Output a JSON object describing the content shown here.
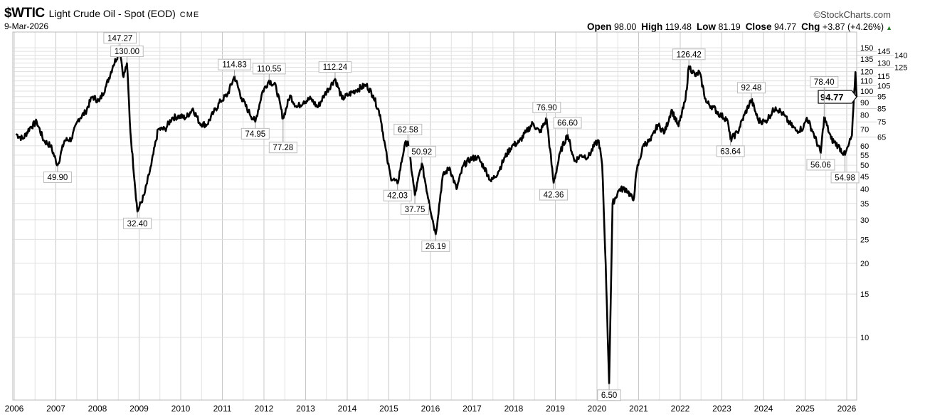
{
  "header": {
    "symbol": "$WTIC",
    "name": "Light Crude Oil - Spot (EOD)",
    "exchange": "CME",
    "date": "9-Mar-2026",
    "brand": "©StockCharts.com",
    "open_label": "Open",
    "open": "98.00",
    "high_label": "High",
    "high": "119.48",
    "low_label": "Low",
    "low": "81.19",
    "close_label": "Close",
    "close": "94.77",
    "chg_label": "Chg",
    "chg": "+3.87 (+4.26%)",
    "chg_icon": "up-triangle-icon"
  },
  "chart_data": {
    "type": "line",
    "title": "$WTIC Light Crude Oil - Spot (EOD)",
    "y_scale": "log",
    "ylim": [
      5.5,
      160
    ],
    "xlim": [
      "2006-01",
      "2026-03"
    ],
    "grid": true,
    "line_color": "#000000",
    "x_ticks": [
      "2006",
      "2007",
      "2008",
      "2009",
      "2010",
      "2011",
      "2012",
      "2013",
      "2014",
      "2015",
      "2016",
      "2017",
      "2018",
      "2019",
      "2020",
      "2021",
      "2022",
      "2023",
      "2024",
      "2025",
      "2026"
    ],
    "y_ticks": [
      10,
      15,
      20,
      25,
      30,
      35,
      40,
      45,
      50,
      55,
      60,
      65,
      70,
      75,
      80,
      85,
      90,
      95,
      100,
      105,
      110,
      115,
      120,
      125,
      130,
      135,
      140,
      145,
      150
    ],
    "last_value": "94.77",
    "series": [
      [
        "2006-01",
        67
      ],
      [
        "2006-03",
        64
      ],
      [
        "2006-05",
        71
      ],
      [
        "2006-07",
        75
      ],
      [
        "2006-09",
        63
      ],
      [
        "2006-11",
        60
      ],
      [
        "2007-01",
        49.9
      ],
      [
        "2007-03",
        63
      ],
      [
        "2007-05",
        64
      ],
      [
        "2007-07",
        77
      ],
      [
        "2007-09",
        82
      ],
      [
        "2007-11",
        95
      ],
      [
        "2008-01",
        91
      ],
      [
        "2008-03",
        105
      ],
      [
        "2008-05",
        127
      ],
      [
        "2008-07",
        147.27
      ],
      [
        "2008-08",
        114
      ],
      [
        "2008-09",
        130
      ],
      [
        "2008-10",
        68
      ],
      [
        "2008-12",
        32.4
      ],
      [
        "2009-02",
        38
      ],
      [
        "2009-04",
        50
      ],
      [
        "2009-06",
        70
      ],
      [
        "2009-08",
        70
      ],
      [
        "2009-10",
        78
      ],
      [
        "2009-12",
        79
      ],
      [
        "2010-02",
        78
      ],
      [
        "2010-04",
        85
      ],
      [
        "2010-06",
        74
      ],
      [
        "2010-08",
        73
      ],
      [
        "2010-10",
        82
      ],
      [
        "2010-12",
        91
      ],
      [
        "2011-02",
        97
      ],
      [
        "2011-04",
        114.83
      ],
      [
        "2011-06",
        94
      ],
      [
        "2011-08",
        83
      ],
      [
        "2011-10",
        74.95
      ],
      [
        "2011-12",
        99
      ],
      [
        "2012-02",
        110.55
      ],
      [
        "2012-04",
        104
      ],
      [
        "2012-06",
        77.28
      ],
      [
        "2012-08",
        96
      ],
      [
        "2012-10",
        86
      ],
      [
        "2012-12",
        91
      ],
      [
        "2013-02",
        93
      ],
      [
        "2013-04",
        86
      ],
      [
        "2013-06",
        97
      ],
      [
        "2013-09",
        112.24
      ],
      [
        "2013-11",
        93
      ],
      [
        "2014-01",
        97
      ],
      [
        "2014-03",
        101
      ],
      [
        "2014-06",
        106
      ],
      [
        "2014-08",
        96
      ],
      [
        "2014-10",
        80
      ],
      [
        "2014-12",
        53
      ],
      [
        "2015-01",
        45
      ],
      [
        "2015-03",
        42.03
      ],
      [
        "2015-05",
        60
      ],
      [
        "2015-06",
        62.58
      ],
      [
        "2015-08",
        37.75
      ],
      [
        "2015-10",
        50.92
      ],
      [
        "2015-12",
        36
      ],
      [
        "2016-02",
        26.19
      ],
      [
        "2016-04",
        45
      ],
      [
        "2016-06",
        49
      ],
      [
        "2016-08",
        40
      ],
      [
        "2016-10",
        50
      ],
      [
        "2016-12",
        53
      ],
      [
        "2017-02",
        54
      ],
      [
        "2017-04",
        49
      ],
      [
        "2017-06",
        43
      ],
      [
        "2017-08",
        47
      ],
      [
        "2017-10",
        54
      ],
      [
        "2017-12",
        60
      ],
      [
        "2018-02",
        62
      ],
      [
        "2018-04",
        68
      ],
      [
        "2018-06",
        74
      ],
      [
        "2018-08",
        68
      ],
      [
        "2018-10",
        76.9
      ],
      [
        "2018-12",
        42.36
      ],
      [
        "2019-02",
        57
      ],
      [
        "2019-04",
        66.6
      ],
      [
        "2019-06",
        52
      ],
      [
        "2019-08",
        55
      ],
      [
        "2019-10",
        54
      ],
      [
        "2019-12",
        61
      ],
      [
        "2020-01",
        63
      ],
      [
        "2020-02",
        50
      ],
      [
        "2020-03",
        20
      ],
      [
        "2020-04",
        6.5
      ],
      [
        "2020-05",
        35
      ],
      [
        "2020-07",
        40
      ],
      [
        "2020-09",
        40
      ],
      [
        "2020-11",
        36
      ],
      [
        "2020-12",
        48
      ],
      [
        "2021-02",
        61
      ],
      [
        "2021-04",
        63
      ],
      [
        "2021-06",
        73
      ],
      [
        "2021-08",
        68
      ],
      [
        "2021-10",
        84
      ],
      [
        "2021-12",
        72
      ],
      [
        "2022-02",
        92
      ],
      [
        "2022-03",
        126.42
      ],
      [
        "2022-05",
        115
      ],
      [
        "2022-06",
        120
      ],
      [
        "2022-08",
        90
      ],
      [
        "2022-10",
        86
      ],
      [
        "2022-12",
        80
      ],
      [
        "2023-02",
        77
      ],
      [
        "2023-03",
        63.64
      ],
      [
        "2023-05",
        68
      ],
      [
        "2023-07",
        80
      ],
      [
        "2023-09",
        92.48
      ],
      [
        "2023-11",
        76
      ],
      [
        "2024-01",
        75
      ],
      [
        "2024-04",
        86
      ],
      [
        "2024-06",
        81
      ],
      [
        "2024-08",
        74
      ],
      [
        "2024-10",
        69
      ],
      [
        "2024-12",
        71
      ],
      [
        "2025-01",
        78
      ],
      [
        "2025-03",
        67
      ],
      [
        "2025-05",
        56.06
      ],
      [
        "2025-06",
        78.4
      ],
      [
        "2025-08",
        64
      ],
      [
        "2025-10",
        60
      ],
      [
        "2025-12",
        54.98
      ],
      [
        "2026-01",
        60
      ],
      [
        "2026-02",
        66
      ],
      [
        "2026-03",
        119.48
      ],
      [
        "2026-03",
        94.77
      ]
    ],
    "annotations": [
      {
        "date": "2008-07",
        "value": "147.27",
        "pos": "above"
      },
      {
        "date": "2008-09",
        "value": "130.00",
        "pos": "above"
      },
      {
        "date": "2007-01",
        "value": "49.90",
        "pos": "below"
      },
      {
        "date": "2008-12",
        "value": "32.40",
        "pos": "below"
      },
      {
        "date": "2011-04",
        "value": "114.83",
        "pos": "above"
      },
      {
        "date": "2011-10",
        "value": "74.95",
        "pos": "below"
      },
      {
        "date": "2012-02",
        "value": "110.55",
        "pos": "above"
      },
      {
        "date": "2012-06",
        "value": "77.28",
        "pos": "below"
      },
      {
        "date": "2013-09",
        "value": "112.24",
        "pos": "above"
      },
      {
        "date": "2015-03",
        "value": "42.03",
        "pos": "below"
      },
      {
        "date": "2015-06",
        "value": "62.58",
        "pos": "above"
      },
      {
        "date": "2015-08",
        "value": "37.75",
        "pos": "below"
      },
      {
        "date": "2015-10",
        "value": "50.92",
        "pos": "above"
      },
      {
        "date": "2016-02",
        "value": "26.19",
        "pos": "below"
      },
      {
        "date": "2018-10",
        "value": "76.90",
        "pos": "above"
      },
      {
        "date": "2018-12",
        "value": "42.36",
        "pos": "below"
      },
      {
        "date": "2019-04",
        "value": "66.60",
        "pos": "above"
      },
      {
        "date": "2020-04",
        "value": "6.50",
        "pos": "below"
      },
      {
        "date": "2022-03",
        "value": "126.42",
        "pos": "above"
      },
      {
        "date": "2023-03",
        "value": "63.64",
        "pos": "below"
      },
      {
        "date": "2023-09",
        "value": "92.48",
        "pos": "above"
      },
      {
        "date": "2025-05",
        "value": "56.06",
        "pos": "below"
      },
      {
        "date": "2025-06",
        "value": "78.40",
        "pos": "above"
      },
      {
        "date": "2025-12",
        "value": "54.98",
        "pos": "below"
      }
    ]
  }
}
